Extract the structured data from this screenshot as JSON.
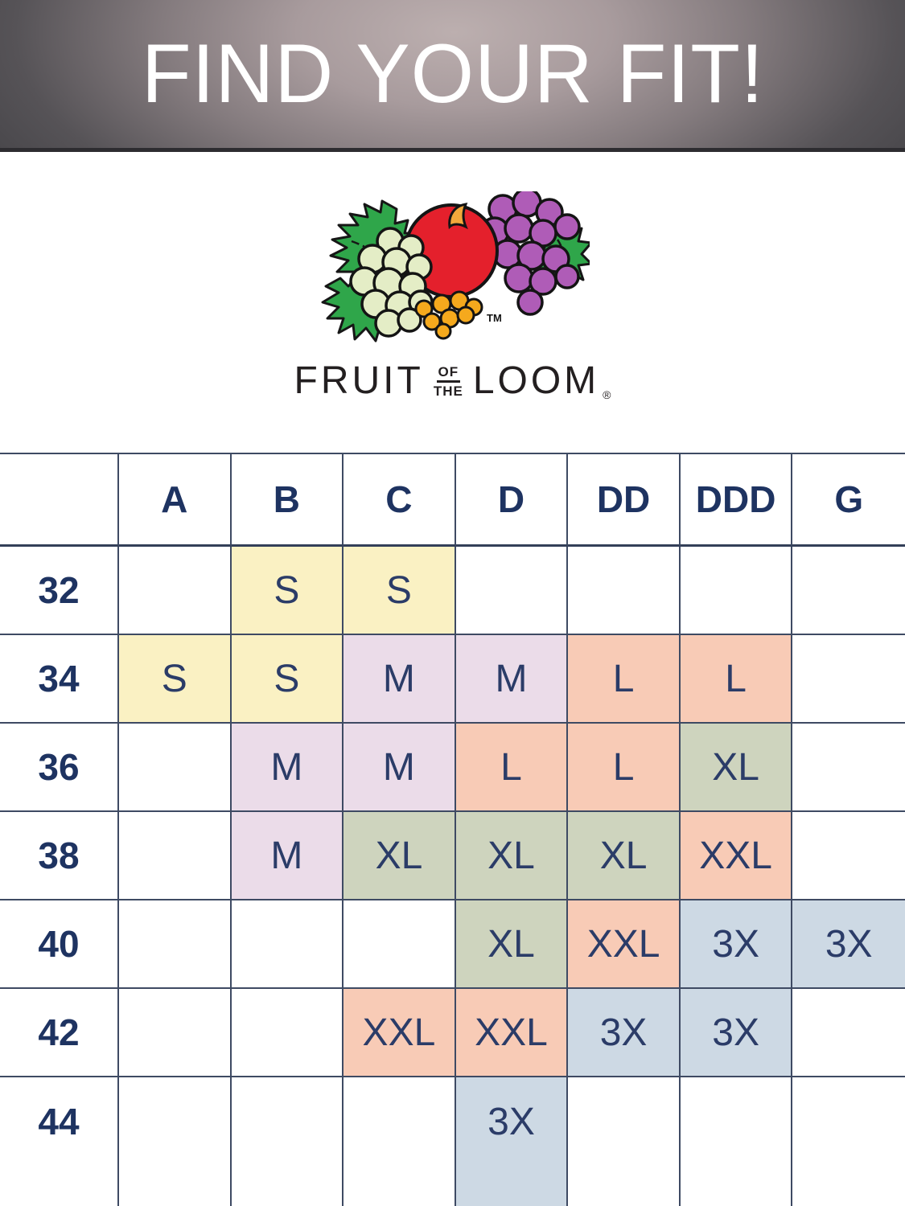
{
  "banner": {
    "title": "FIND YOUR FIT!"
  },
  "logo": {
    "fruit": "FRUIT",
    "of": "OF",
    "the": "THE",
    "loom": "LOOM",
    "registered": "®",
    "trademark": "TM"
  },
  "colors": {
    "yellow": "#faf1c3",
    "lavender": "#ebdce9",
    "salmon": "#f8cbb6",
    "green": "#ced4be",
    "blue": "#cdd9e4",
    "navy_text": "#1e3361",
    "cell_text": "#2b3c68",
    "grid_line": "#3e4a63",
    "banner_dark": "#434246",
    "banner_light": "#bcafaf",
    "apple_red": "#e4202c",
    "grape_purple": "#af5cb7",
    "grape_green": "#e4edc6",
    "leaf_green": "#2fa64a",
    "grape_orange": "#f5a91d"
  },
  "chart_data": {
    "type": "table",
    "title": "FIND YOUR FIT!",
    "columns": [
      "A",
      "B",
      "C",
      "D",
      "DD",
      "DDD",
      "G"
    ],
    "rows": [
      "32",
      "34",
      "36",
      "38",
      "40",
      "42",
      "44"
    ],
    "values": [
      [
        "",
        "S",
        "S",
        "",
        "",
        "",
        ""
      ],
      [
        "S",
        "S",
        "M",
        "M",
        "L",
        "L",
        ""
      ],
      [
        "",
        "M",
        "M",
        "L",
        "L",
        "XL",
        ""
      ],
      [
        "",
        "M",
        "XL",
        "XL",
        "XL",
        "XXL",
        ""
      ],
      [
        "",
        "",
        "",
        "XL",
        "XXL",
        "3X",
        "3X"
      ],
      [
        "",
        "",
        "XXL",
        "XXL",
        "3X",
        "3X",
        ""
      ],
      [
        "",
        "",
        "",
        "3X",
        "",
        "",
        ""
      ]
    ],
    "cell_colors": [
      [
        null,
        "yellow",
        "yellow",
        null,
        null,
        null,
        null
      ],
      [
        "yellow",
        "yellow",
        "lavender",
        "lavender",
        "salmon",
        "salmon",
        null
      ],
      [
        null,
        "lavender",
        "lavender",
        "salmon",
        "salmon",
        "green",
        null
      ],
      [
        null,
        "lavender",
        "green",
        "green",
        "green",
        "salmon",
        null
      ],
      [
        null,
        null,
        null,
        "green",
        "salmon",
        "blue",
        "blue"
      ],
      [
        null,
        null,
        "salmon",
        "salmon",
        "blue",
        "blue",
        null
      ],
      [
        null,
        null,
        null,
        "blue",
        null,
        null,
        null
      ]
    ]
  }
}
